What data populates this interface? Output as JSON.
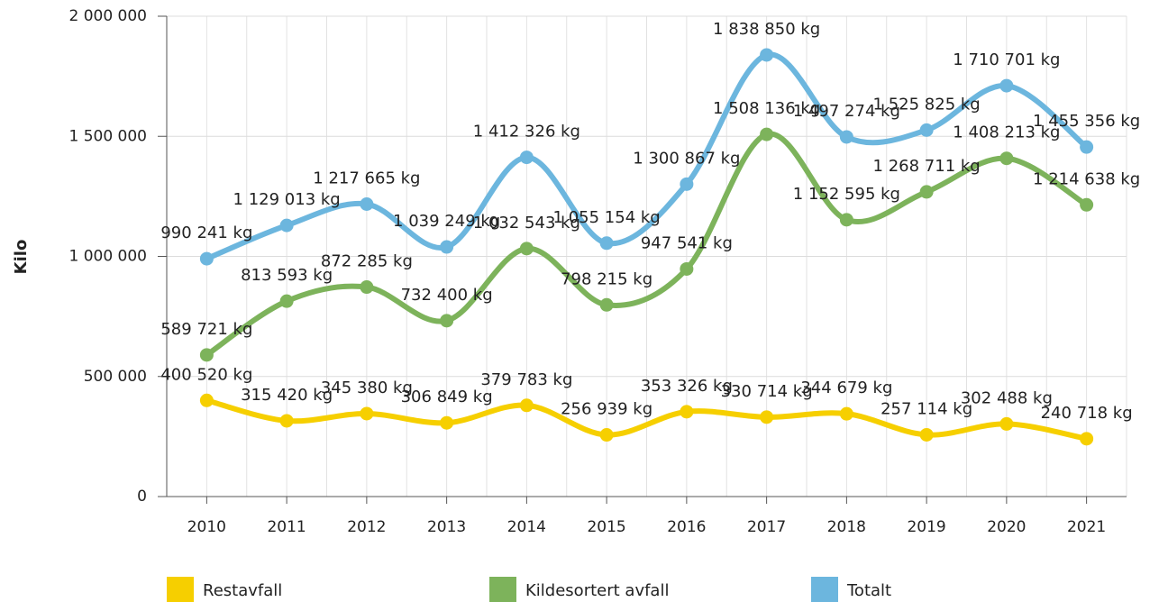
{
  "chart_data": {
    "type": "line",
    "y_label": "Kilo",
    "categories": [
      "2010",
      "2011",
      "2012",
      "2013",
      "2014",
      "2015",
      "2016",
      "2017",
      "2018",
      "2019",
      "2020",
      "2021"
    ],
    "series": [
      {
        "name": "Restavfall",
        "color": "#f6cf00",
        "values": [
          400520,
          315420,
          345380,
          306849,
          379783,
          256939,
          353326,
          330714,
          344679,
          257114,
          302488,
          240718
        ],
        "value_labels": [
          "400 520 kg",
          "315 420 kg",
          "345 380 kg",
          "306 849 kg",
          "379 783 kg",
          "256 939 kg",
          "353 326 kg",
          "330 714 kg",
          "344 679 kg",
          "257 114 kg",
          "302 488 kg",
          "240 718 kg"
        ]
      },
      {
        "name": "Kildesortert avfall",
        "color": "#7db35b",
        "values": [
          589721,
          813593,
          872285,
          732400,
          1032543,
          798215,
          947541,
          1508136,
          1152595,
          1268711,
          1408213,
          1214638
        ],
        "value_labels": [
          "589 721 kg",
          "813 593 kg",
          "872 285 kg",
          "732 400 kg",
          "1 032 543 kg",
          "798 215 kg",
          "947 541 kg",
          "1 508 136 kg",
          "1 152 595 kg",
          "1 268 711 kg",
          "1 408 213 kg",
          "1 214 638 kg"
        ]
      },
      {
        "name": "Totalt",
        "color": "#6cb6de",
        "values": [
          990241,
          1129013,
          1217665,
          1039249,
          1412326,
          1055154,
          1300867,
          1838850,
          1497274,
          1525825,
          1710701,
          1455356
        ],
        "value_labels": [
          "990 241 kg",
          "1 129 013 kg",
          "1 217 665 kg",
          "1 039 249 kg",
          "1 412 326 kg",
          "1 055 154 kg",
          "1 300 867 kg",
          "1 838 850 kg",
          "1 497 274 kg",
          "1 525 825 kg",
          "1 710 701 kg",
          "1 455 356 kg"
        ]
      }
    ],
    "ylim": [
      0,
      2000000
    ],
    "yticks": [
      0,
      {
        "value": 500000,
        "label": "500 000"
      },
      {
        "value": 1000000,
        "label": "1 000 000"
      },
      {
        "value": 1500000,
        "label": "1 500 000"
      },
      {
        "value": 2000000,
        "label": "2 000 000"
      }
    ],
    "grid": true,
    "legend": "bottom"
  }
}
